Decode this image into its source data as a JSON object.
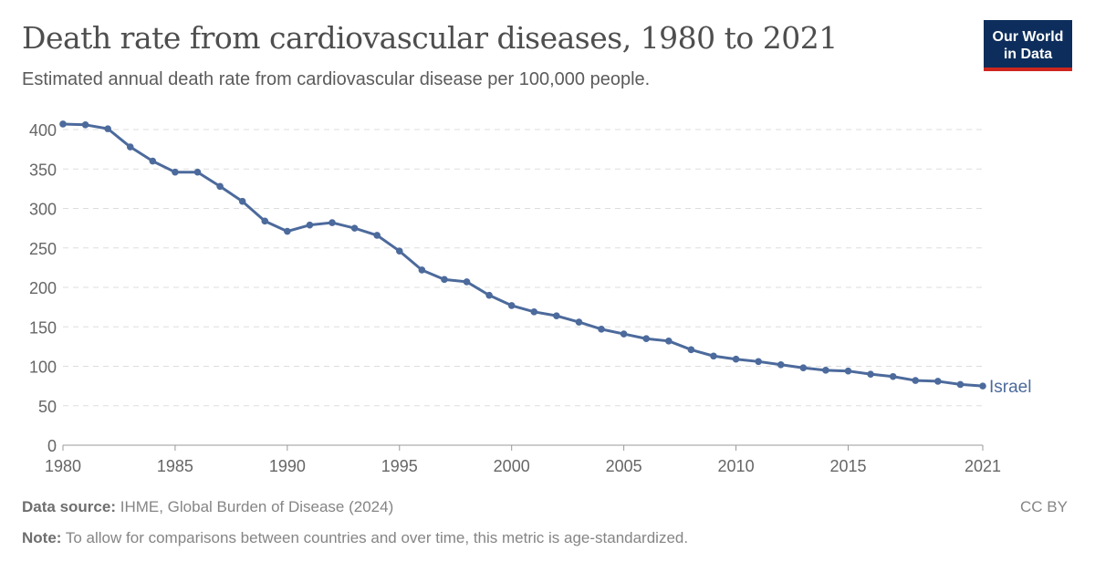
{
  "header": {
    "title": "Death rate from cardiovascular diseases, 1980 to 2021",
    "subtitle": "Estimated annual death rate from cardiovascular disease per 100,000 people.",
    "logo_line1": "Our World",
    "logo_line2": "in Data"
  },
  "footer": {
    "source_label": "Data source:",
    "source_text": "IHME, Global Burden of Disease (2024)",
    "note_label": "Note:",
    "note_text": "To allow for comparisons between countries and over time, this metric is age-standardized.",
    "license": "CC BY"
  },
  "chart_data": {
    "type": "line",
    "title": "Death rate from cardiovascular diseases, 1980 to 2021",
    "xlabel": "",
    "ylabel": "",
    "ylim": [
      0,
      400
    ],
    "xlim": [
      1980,
      2021
    ],
    "grid": "horizontal dashed",
    "yticks": [
      "0",
      "50",
      "100",
      "150",
      "200",
      "250",
      "300",
      "350",
      "400"
    ],
    "xticks": [
      "1980",
      "1985",
      "1990",
      "1995",
      "2000",
      "2005",
      "2010",
      "2015",
      "2021"
    ],
    "series": [
      {
        "name": "Israel",
        "color": "#4c6a9c",
        "x": [
          1980,
          1981,
          1982,
          1983,
          1984,
          1985,
          1986,
          1987,
          1988,
          1989,
          1990,
          1991,
          1992,
          1993,
          1994,
          1995,
          1996,
          1997,
          1998,
          1999,
          2000,
          2001,
          2002,
          2003,
          2004,
          2005,
          2006,
          2007,
          2008,
          2009,
          2010,
          2011,
          2012,
          2013,
          2014,
          2015,
          2016,
          2017,
          2018,
          2019,
          2020,
          2021
        ],
        "y": [
          407,
          406,
          401,
          378,
          360,
          346,
          346,
          328,
          309,
          284,
          271,
          279,
          282,
          275,
          266,
          246,
          222,
          210,
          207,
          190,
          177,
          169,
          164,
          156,
          147,
          141,
          135,
          132,
          121,
          113,
          109,
          106,
          102,
          98,
          95,
          94,
          90,
          87,
          82,
          81,
          77,
          75
        ]
      }
    ]
  }
}
